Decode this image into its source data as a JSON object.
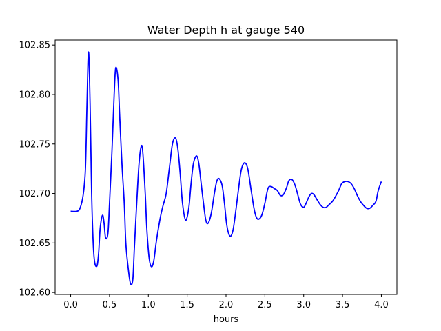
{
  "chart_data": {
    "type": "line",
    "title": "Water Depth h at gauge 540",
    "xlabel": "hours",
    "ylabel": "",
    "xlim": [
      -0.2,
      4.2
    ],
    "ylim": [
      102.598,
      102.855
    ],
    "xticks": [
      0.0,
      0.5,
      1.0,
      1.5,
      2.0,
      2.5,
      3.0,
      3.5,
      4.0
    ],
    "xtick_labels": [
      "0.0",
      "0.5",
      "1.0",
      "1.5",
      "2.0",
      "2.5",
      "3.0",
      "3.5",
      "4.0"
    ],
    "yticks": [
      102.6,
      102.65,
      102.7,
      102.75,
      102.8,
      102.85
    ],
    "ytick_labels": [
      "102.60",
      "102.65",
      "102.70",
      "102.75",
      "102.80",
      "102.85"
    ],
    "grid": false,
    "line_color": "#0000ff",
    "series": [
      {
        "x": [
          0.0,
          0.08,
          0.12,
          0.16,
          0.19,
          0.21,
          0.23,
          0.25,
          0.27,
          0.29,
          0.31,
          0.34,
          0.36,
          0.38,
          0.41,
          0.43,
          0.45,
          0.48,
          0.5,
          0.53,
          0.56,
          0.58,
          0.61,
          0.63,
          0.66,
          0.69,
          0.71,
          0.74,
          0.77,
          0.8,
          0.82,
          0.85,
          0.88,
          0.91,
          0.93,
          0.96,
          0.98,
          1.01,
          1.04,
          1.07,
          1.1,
          1.13,
          1.16,
          1.19,
          1.23,
          1.27,
          1.31,
          1.35,
          1.38,
          1.41,
          1.44,
          1.48,
          1.52,
          1.55,
          1.58,
          1.62,
          1.65,
          1.68,
          1.71,
          1.74,
          1.77,
          1.81,
          1.85,
          1.88,
          1.91,
          1.95,
          1.98,
          2.01,
          2.05,
          2.09,
          2.13,
          2.17,
          2.2,
          2.24,
          2.28,
          2.32,
          2.36,
          2.39,
          2.42,
          2.46,
          2.5,
          2.54,
          2.58,
          2.62,
          2.66,
          2.7,
          2.74,
          2.78,
          2.81,
          2.85,
          2.89,
          2.93,
          2.96,
          3.0,
          3.03,
          3.07,
          3.1,
          3.13,
          3.17,
          3.21,
          3.25,
          3.29,
          3.33,
          3.37,
          3.41,
          3.45,
          3.49,
          3.53,
          3.57,
          3.61,
          3.65,
          3.69,
          3.73,
          3.77,
          3.81,
          3.85,
          3.89,
          3.93,
          3.96,
          4.0
        ],
        "y": [
          102.682,
          102.682,
          102.685,
          102.698,
          102.725,
          102.79,
          102.843,
          102.79,
          102.7,
          102.65,
          102.63,
          102.627,
          102.64,
          102.665,
          102.678,
          102.67,
          102.655,
          102.66,
          102.69,
          102.74,
          102.8,
          102.827,
          102.815,
          102.78,
          102.73,
          102.69,
          102.65,
          102.625,
          102.609,
          102.613,
          102.645,
          102.69,
          102.73,
          102.748,
          102.74,
          102.7,
          102.665,
          102.635,
          102.626,
          102.632,
          102.65,
          102.665,
          102.678,
          102.688,
          102.7,
          102.725,
          102.75,
          102.756,
          102.745,
          102.72,
          102.69,
          102.673,
          102.685,
          102.71,
          102.73,
          102.738,
          102.73,
          102.71,
          102.69,
          102.673,
          102.67,
          102.68,
          102.7,
          102.712,
          102.715,
          102.708,
          102.69,
          102.668,
          102.657,
          102.663,
          102.685,
          102.71,
          102.725,
          102.731,
          102.725,
          102.705,
          102.685,
          102.676,
          102.674,
          102.678,
          102.69,
          102.705,
          102.707,
          102.705,
          102.703,
          102.698,
          102.699,
          102.706,
          102.713,
          102.714,
          102.708,
          102.697,
          102.689,
          102.686,
          102.69,
          102.697,
          102.7,
          102.699,
          102.694,
          102.689,
          102.686,
          102.686,
          102.689,
          102.692,
          102.697,
          102.703,
          102.71,
          102.712,
          102.712,
          102.71,
          102.705,
          102.698,
          102.692,
          102.688,
          102.685,
          102.685,
          102.688,
          102.692,
          102.703,
          102.712
        ]
      }
    ]
  }
}
